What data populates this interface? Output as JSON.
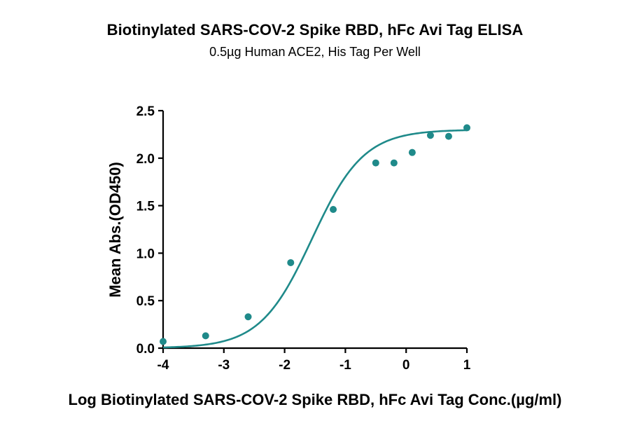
{
  "chart_data": {
    "type": "scatter",
    "title": "Biotinylated SARS-COV-2 Spike RBD, hFc Avi Tag ELISA",
    "subtitle": "0.5µg Human ACE2, His Tag Per Well",
    "xlabel": "Log Biotinylated SARS-COV-2 Spike RBD, hFc Avi Tag Conc.(µg/ml)",
    "ylabel": "Mean Abs.(OD450)",
    "xlim": [
      -4,
      1
    ],
    "ylim": [
      0,
      2.5
    ],
    "x_ticks": [
      -4,
      -3,
      -2,
      -1,
      0,
      1
    ],
    "x_tick_labels": [
      "-4",
      "-3",
      "-2",
      "-1",
      "0",
      "1"
    ],
    "y_ticks": [
      0,
      0.5,
      1.0,
      1.5,
      2.0,
      2.5
    ],
    "y_tick_labels": [
      "0.0",
      "0.5",
      "1.0",
      "1.5",
      "2.0",
      "2.5"
    ],
    "grid": false,
    "legend": "none",
    "color": "#1f8a8a",
    "series": [
      {
        "points": [
          {
            "x": -4.0,
            "y": 0.07
          },
          {
            "x": -3.3,
            "y": 0.13
          },
          {
            "x": -2.6,
            "y": 0.33
          },
          {
            "x": -1.9,
            "y": 0.9
          },
          {
            "x": -1.2,
            "y": 1.46
          },
          {
            "x": -0.5,
            "y": 1.95
          },
          {
            "x": -0.2,
            "y": 1.95
          },
          {
            "x": 0.1,
            "y": 2.06
          },
          {
            "x": 0.4,
            "y": 2.24
          },
          {
            "x": 0.7,
            "y": 2.23
          },
          {
            "x": 1.0,
            "y": 2.32
          }
        ],
        "fit": {
          "model": "4PL",
          "bottom": 0.0,
          "top": 2.3,
          "logEC50": -1.55,
          "hill": 1.02
        }
      }
    ]
  }
}
